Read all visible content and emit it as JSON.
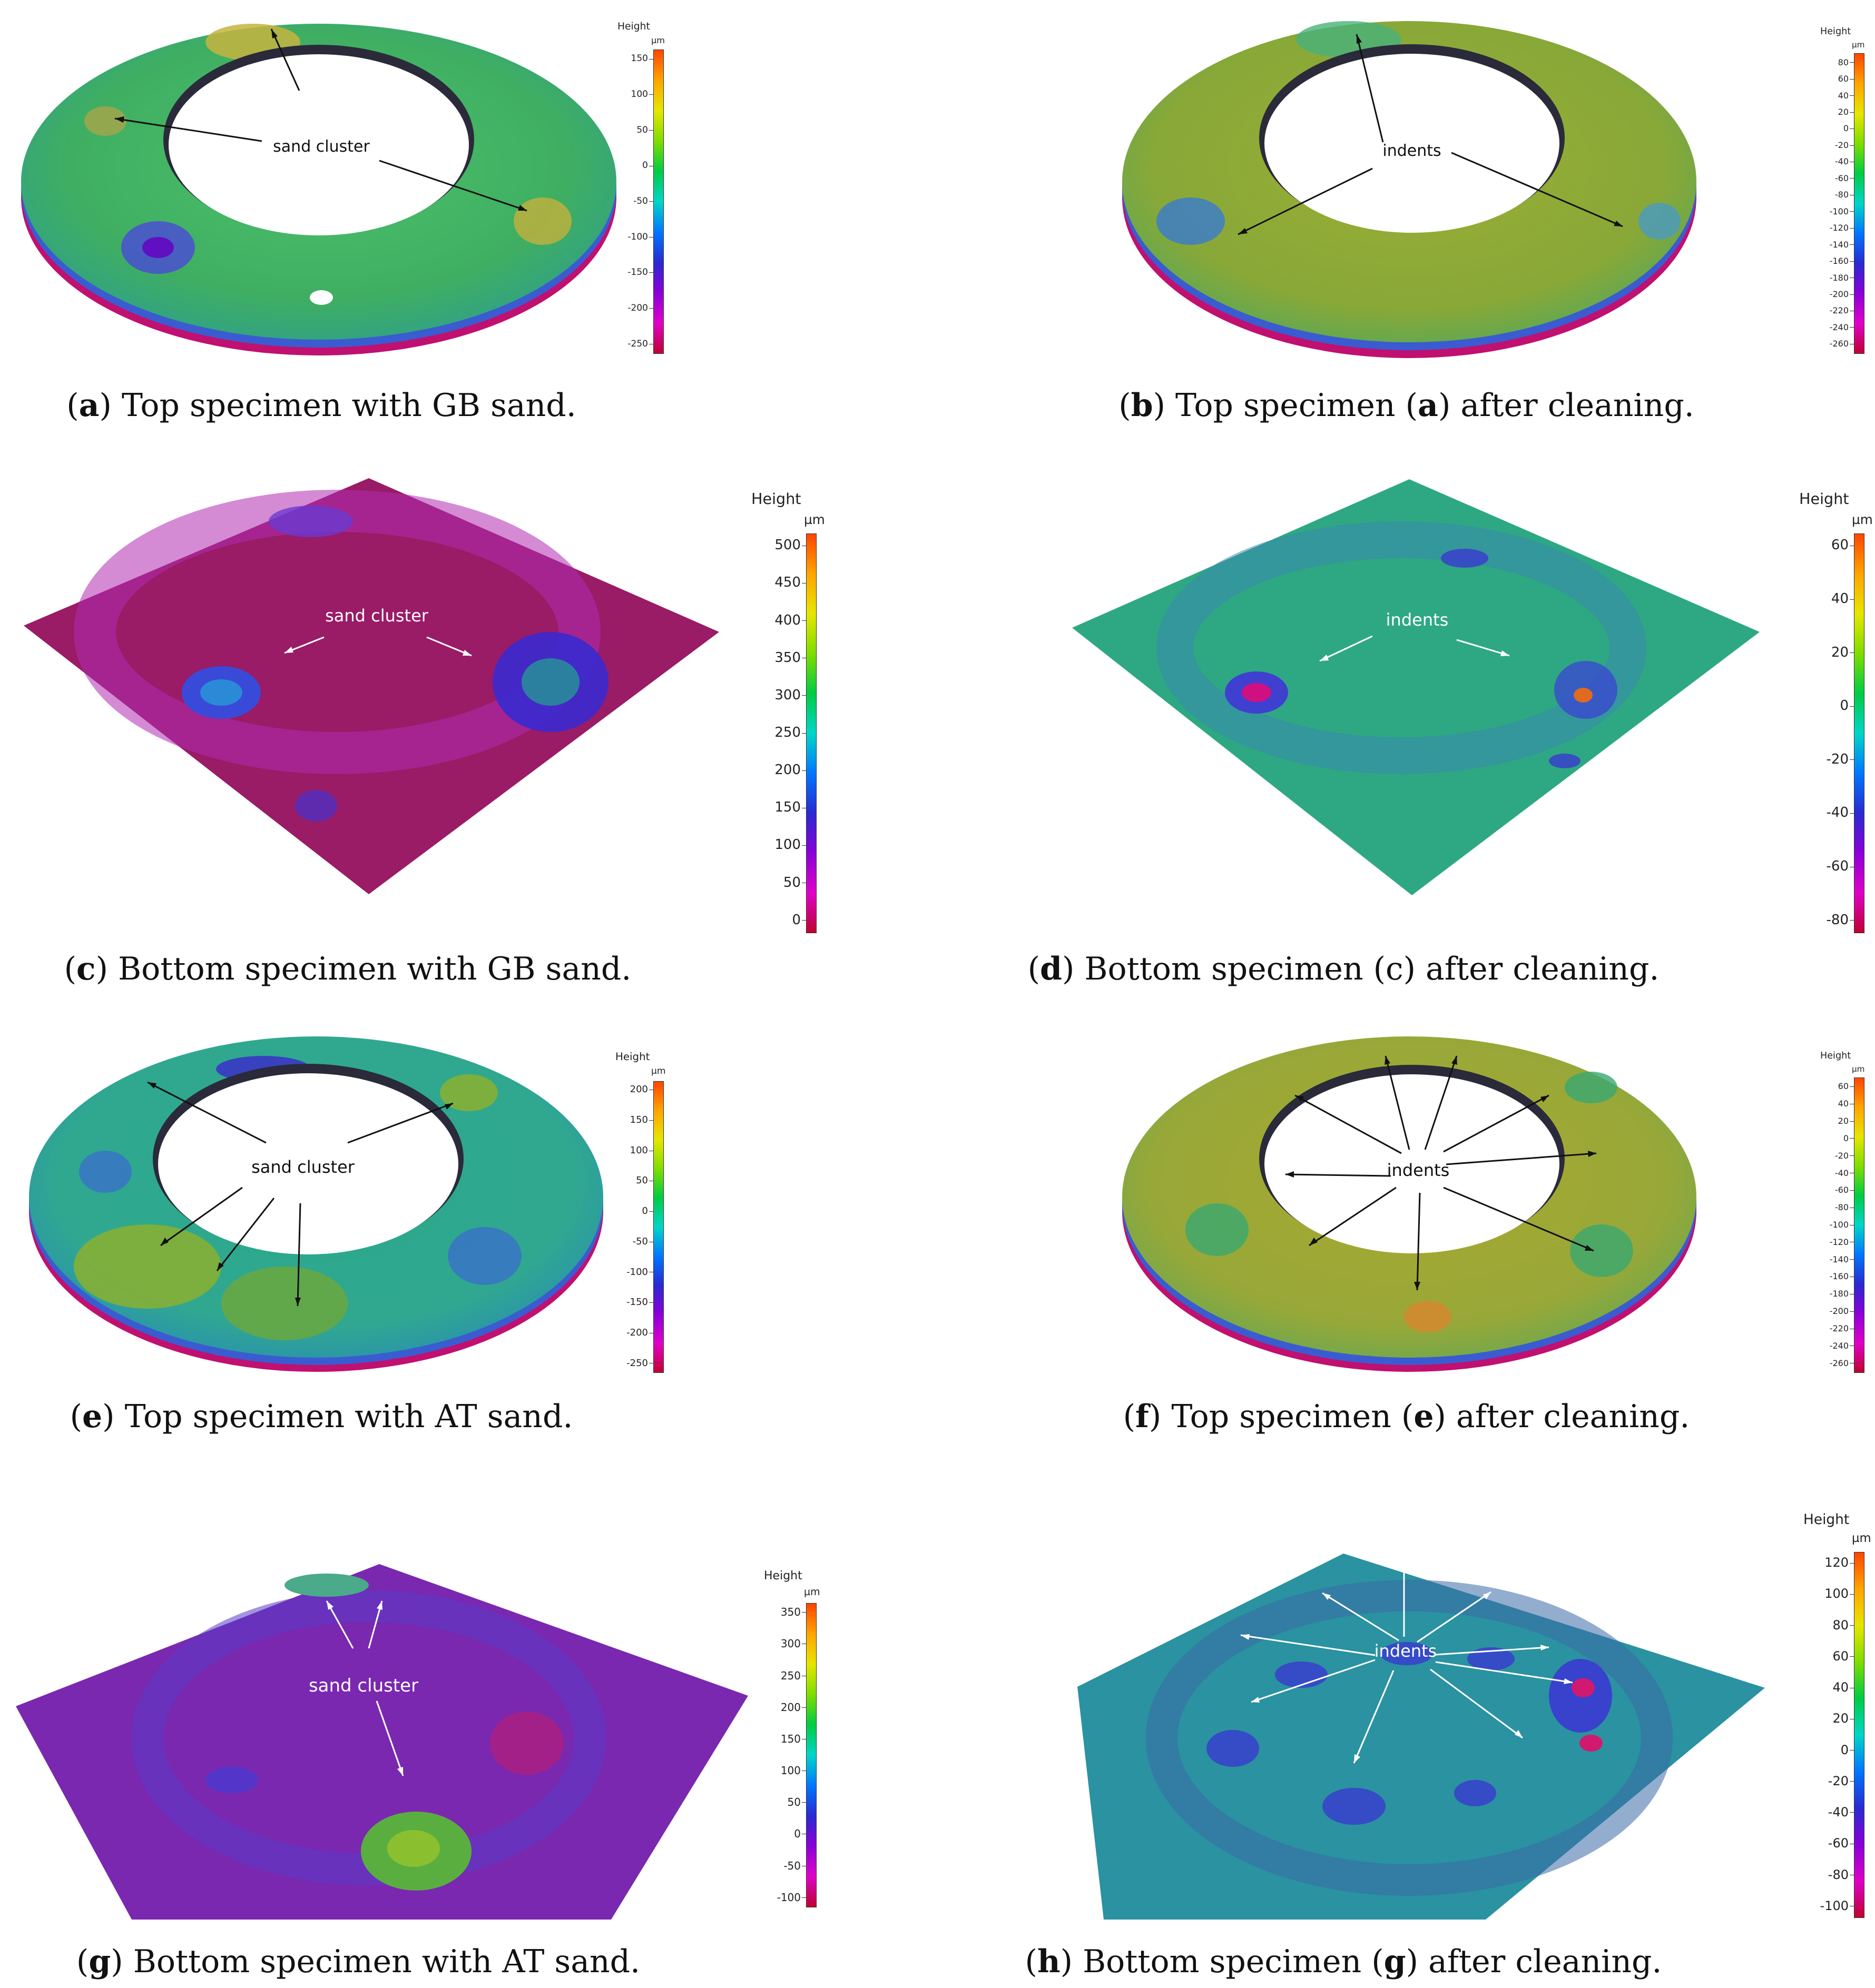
{
  "colorbar_title": "Height",
  "colorbar_unit": "µm",
  "annotations": {
    "sand_cluster": "sand cluster",
    "indents": "indents"
  },
  "panels": [
    {
      "id": "a",
      "letter": "a",
      "caption_pre": "(",
      "caption_mid": ") Top specimen with GB sand.",
      "caption_ref": "",
      "caption_end": "",
      "ticks": [
        "150",
        "100",
        "50",
        "0",
        "-50",
        "-100",
        "-150",
        "-200",
        "-250"
      ]
    },
    {
      "id": "b",
      "letter": "b",
      "caption_pre": "(",
      "caption_mid": ") Top specimen (",
      "caption_ref": "a",
      "caption_end": ") after cleaning.",
      "ticks": [
        "80",
        "60",
        "40",
        "20",
        "0",
        "-20",
        "-40",
        "-60",
        "-80",
        "-100",
        "-120",
        "-140",
        "-160",
        "-180",
        "-200",
        "-220",
        "-240",
        "-260"
      ]
    },
    {
      "id": "c",
      "letter": "c",
      "caption_pre": "(",
      "caption_mid": ") Bottom specimen with GB sand.",
      "caption_ref": "",
      "caption_end": "",
      "ticks": [
        "500",
        "450",
        "400",
        "350",
        "300",
        "250",
        "200",
        "150",
        "100",
        "50",
        "0"
      ]
    },
    {
      "id": "d",
      "letter": "d",
      "caption_pre": "(",
      "caption_mid": ") Bottom specimen (c) after cleaning.",
      "caption_ref": "",
      "caption_end": "",
      "ticks": [
        "60",
        "40",
        "20",
        "0",
        "-20",
        "-40",
        "-60",
        "-80"
      ]
    },
    {
      "id": "e",
      "letter": "e",
      "caption_pre": "(",
      "caption_mid": ") Top specimen with AT sand.",
      "caption_ref": "",
      "caption_end": "",
      "ticks": [
        "200",
        "150",
        "100",
        "50",
        "0",
        "-50",
        "-100",
        "-150",
        "-200",
        "-250"
      ]
    },
    {
      "id": "f",
      "letter": "f",
      "caption_pre": "(",
      "caption_mid": ") Top specimen (",
      "caption_ref": "e",
      "caption_end": ") after cleaning.",
      "ticks": [
        "60",
        "40",
        "20",
        "0",
        "-20",
        "-40",
        "-60",
        "-80",
        "-100",
        "-120",
        "-140",
        "-160",
        "-180",
        "-200",
        "-220",
        "-240",
        "-260"
      ]
    },
    {
      "id": "g",
      "letter": "g",
      "caption_pre": "(",
      "caption_mid": ") Bottom specimen with AT sand.",
      "caption_ref": "",
      "caption_end": "",
      "ticks": [
        "350",
        "300",
        "250",
        "200",
        "150",
        "100",
        "50",
        "0",
        "-50",
        "-100"
      ]
    },
    {
      "id": "h",
      "letter": "h",
      "caption_pre": "(",
      "caption_mid": ") Bottom specimen (",
      "caption_ref": "g",
      "caption_end": ") after cleaning.",
      "ticks": [
        "120",
        "100",
        "80",
        "60",
        "40",
        "20",
        "0",
        "-20",
        "-40",
        "-60",
        "-80",
        "-100"
      ]
    }
  ],
  "colors": {
    "rainbow": [
      "#ff4500",
      "#ffa500",
      "#e6e600",
      "#7fdd00",
      "#00cc44",
      "#00d6c8",
      "#0077ff",
      "#2a2ad0",
      "#8a00d8",
      "#e000c8",
      "#c00030"
    ]
  }
}
